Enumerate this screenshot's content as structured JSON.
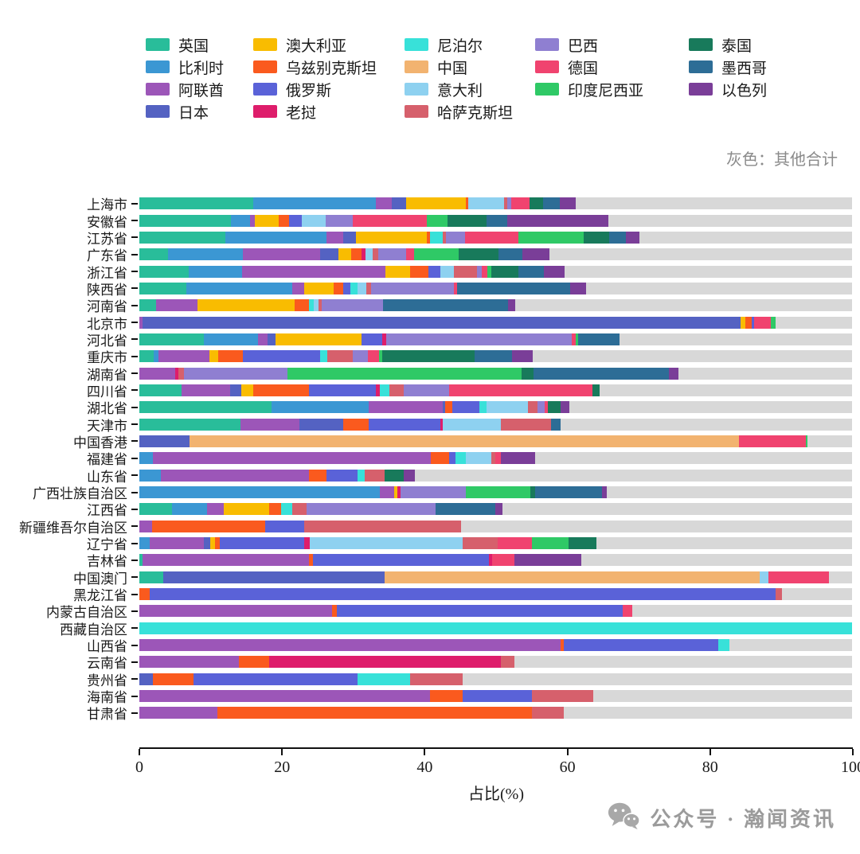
{
  "note": "灰色：其他合计",
  "footer": {
    "text": "公众号 · 瀚闻资讯"
  },
  "colors": {
    "英国": "#29BD9A",
    "比利时": "#3B97D3",
    "阿联酋": "#9C56B8",
    "日本": "#5462C2",
    "澳大利亚": "#F9BC01",
    "乌兹别克斯坦": "#FA5A1E",
    "俄罗斯": "#5A62D8",
    "老挝": "#DE1D6B",
    "尼泊尔": "#38E1D9",
    "中国": "#F2B370",
    "意大利": "#8ED1F0",
    "哈萨克斯坦": "#D6606C",
    "巴西": "#8F7FD1",
    "德国": "#F0436F",
    "印度尼西亚": "#2FC966",
    "泰国": "#187A5B",
    "墨西哥": "#2D6D96",
    "以色列": "#7A3E98",
    "其他": "#D8D8D8"
  },
  "legend": {
    "columns": [
      [
        "英国",
        "比利时",
        "阿联酋",
        "日本"
      ],
      [
        "澳大利亚",
        "乌兹别克斯坦",
        "俄罗斯",
        "老挝"
      ],
      [
        "尼泊尔",
        "中国",
        "意大利",
        "哈萨克斯坦"
      ],
      [
        "巴西",
        "德国",
        "印度尼西亚"
      ],
      [
        "泰国",
        "墨西哥",
        "以色列"
      ]
    ]
  },
  "chart_data": {
    "type": "stacked-bar-horizontal",
    "xlabel": "占比(%)",
    "xlim": [
      0,
      100
    ],
    "xticks": [
      0,
      20,
      40,
      60,
      80,
      100
    ],
    "other_label": "其他合计",
    "rows": [
      {
        "province": "上海市",
        "segments": [
          [
            "英国",
            16
          ],
          [
            "比利时",
            17.2
          ],
          [
            "阿联酋",
            2.2
          ],
          [
            "日本",
            2
          ],
          [
            "澳大利亚",
            8.4
          ],
          [
            "乌兹别克斯坦",
            0.4
          ],
          [
            "意大利",
            5
          ],
          [
            "哈萨克斯坦",
            0.4
          ],
          [
            "巴西",
            0.6
          ],
          [
            "德国",
            2.6
          ],
          [
            "泰国",
            1.8
          ],
          [
            "墨西哥",
            2.4
          ],
          [
            "以色列",
            2.2
          ]
        ]
      },
      {
        "province": "安徽省",
        "segments": [
          [
            "英国",
            12.8
          ],
          [
            "比利时",
            2.7
          ],
          [
            "阿联酋",
            0.7
          ],
          [
            "澳大利亚",
            3.4
          ],
          [
            "乌兹别克斯坦",
            1.4
          ],
          [
            "俄罗斯",
            1.8
          ],
          [
            "意大利",
            3.4
          ],
          [
            "巴西",
            3.7
          ],
          [
            "德国",
            10.4
          ],
          [
            "印度尼西亚",
            2.9
          ],
          [
            "泰国",
            5.5
          ],
          [
            "墨西哥",
            2.9
          ],
          [
            "以色列",
            14.2
          ]
        ]
      },
      {
        "province": "江苏省",
        "segments": [
          [
            "英国",
            12.1
          ],
          [
            "比利时",
            14.2
          ],
          [
            "阿联酋",
            2.3
          ],
          [
            "日本",
            1.8
          ],
          [
            "澳大利亚",
            9.9
          ],
          [
            "乌兹别克斯坦",
            0.5
          ],
          [
            "尼泊尔",
            1.8
          ],
          [
            "哈萨克斯坦",
            0.4
          ],
          [
            "巴西",
            2.7
          ],
          [
            "德国",
            7.5
          ],
          [
            "印度尼西亚",
            9.1
          ],
          [
            "泰国",
            3.6
          ],
          [
            "墨西哥",
            2.4
          ],
          [
            "以色列",
            1.9
          ]
        ]
      },
      {
        "province": "广东省",
        "segments": [
          [
            "英国",
            4
          ],
          [
            "比利时",
            10.5
          ],
          [
            "阿联酋",
            10.9
          ],
          [
            "日本",
            2.5
          ],
          [
            "澳大利亚",
            1.8
          ],
          [
            "乌兹别克斯坦",
            1.5
          ],
          [
            "老挝",
            0.5
          ],
          [
            "意大利",
            1.0
          ],
          [
            "哈萨克斯坦",
            0.8
          ],
          [
            "巴西",
            3.9
          ],
          [
            "德国",
            1.2
          ],
          [
            "印度尼西亚",
            6.2
          ],
          [
            "泰国",
            5.6
          ],
          [
            "墨西哥",
            3.3
          ],
          [
            "以色列",
            3.8
          ]
        ]
      },
      {
        "province": "浙江省",
        "segments": [
          [
            "英国",
            6.9
          ],
          [
            "比利时",
            7.5
          ],
          [
            "阿联酋",
            20.1
          ],
          [
            "澳大利亚",
            3.5
          ],
          [
            "乌兹别克斯坦",
            2.6
          ],
          [
            "俄罗斯",
            1.6
          ],
          [
            "意大利",
            1.9
          ],
          [
            "哈萨克斯坦",
            3.3
          ],
          [
            "巴西",
            0.7
          ],
          [
            "德国",
            0.7
          ],
          [
            "印度尼西亚",
            0.6
          ],
          [
            "泰国",
            3.8
          ],
          [
            "墨西哥",
            3.6
          ],
          [
            "以色列",
            2.9
          ]
        ]
      },
      {
        "province": "陕西省",
        "segments": [
          [
            "英国",
            6.6
          ],
          [
            "比利时",
            14.9
          ],
          [
            "阿联酋",
            1.6
          ],
          [
            "澳大利亚",
            4.2
          ],
          [
            "乌兹别克斯坦",
            1.3
          ],
          [
            "俄罗斯",
            1.0
          ],
          [
            "尼泊尔",
            1.0
          ],
          [
            "意大利",
            1.2
          ],
          [
            "哈萨克斯坦",
            0.7
          ],
          [
            "巴西",
            11.7
          ],
          [
            "德国",
            0.4
          ],
          [
            "墨西哥",
            15.9
          ],
          [
            "以色列",
            2.2
          ]
        ]
      },
      {
        "province": "河南省",
        "segments": [
          [
            "英国",
            2.3
          ],
          [
            "阿联酋",
            5.9
          ],
          [
            "澳大利亚",
            13.6
          ],
          [
            "乌兹别克斯坦",
            2.0
          ],
          [
            "尼泊尔",
            0.7
          ],
          [
            "意大利",
            0.7
          ],
          [
            "哈萨克斯坦",
            0.4
          ],
          [
            "巴西",
            8.6
          ],
          [
            "墨西哥",
            17.5
          ],
          [
            "以色列",
            1.0
          ]
        ]
      },
      {
        "province": "北京市",
        "segments": [
          [
            "阿联酋",
            0.5
          ],
          [
            "日本",
            83.9
          ],
          [
            "澳大利亚",
            0.6
          ],
          [
            "乌兹别克斯坦",
            0.9
          ],
          [
            "俄罗斯",
            0.4
          ],
          [
            "德国",
            2.3
          ],
          [
            "印度尼西亚",
            0.7
          ]
        ]
      },
      {
        "province": "河北省",
        "segments": [
          [
            "英国",
            9.1
          ],
          [
            "比利时",
            7.5
          ],
          [
            "阿联酋",
            1.4
          ],
          [
            "日本",
            1.1
          ],
          [
            "澳大利亚",
            12.1
          ],
          [
            "俄罗斯",
            2.9
          ],
          [
            "老挝",
            0.5
          ],
          [
            "巴西",
            26.1
          ],
          [
            "德国",
            0.5
          ],
          [
            "印度尼西亚",
            0.4
          ],
          [
            "墨西哥",
            5.8
          ]
        ]
      },
      {
        "province": "重庆市",
        "segments": [
          [
            "英国",
            2.0
          ],
          [
            "比利时",
            0.7
          ],
          [
            "阿联酋",
            7.1
          ],
          [
            "澳大利亚",
            1.3
          ],
          [
            "乌兹别克斯坦",
            3.4
          ],
          [
            "俄罗斯",
            10.9
          ],
          [
            "尼泊尔",
            1.0
          ],
          [
            "哈萨克斯坦",
            3.6
          ],
          [
            "巴西",
            2.1
          ],
          [
            "德国",
            1.5
          ],
          [
            "印度尼西亚",
            0.5
          ],
          [
            "泰国",
            13.0
          ],
          [
            "墨西哥",
            5.2
          ],
          [
            "以色列",
            2.9
          ]
        ]
      },
      {
        "province": "湖南省",
        "segments": [
          [
            "阿联酋",
            5.0
          ],
          [
            "老挝",
            0.5
          ],
          [
            "哈萨克斯坦",
            0.8
          ],
          [
            "巴西",
            14.5
          ],
          [
            "印度尼西亚",
            32.8
          ],
          [
            "泰国",
            1.7
          ],
          [
            "墨西哥",
            19.0
          ],
          [
            "以色列",
            1.3
          ]
        ]
      },
      {
        "province": "四川省",
        "segments": [
          [
            "英国",
            5.9
          ],
          [
            "阿联酋",
            6.8
          ],
          [
            "日本",
            1.6
          ],
          [
            "澳大利亚",
            1.7
          ],
          [
            "乌兹别克斯坦",
            7.8
          ],
          [
            "俄罗斯",
            9.4
          ],
          [
            "老挝",
            0.6
          ],
          [
            "尼泊尔",
            1.3
          ],
          [
            "哈萨克斯坦",
            2.0
          ],
          [
            "巴西",
            6.4
          ],
          [
            "德国",
            20.1
          ],
          [
            "泰国",
            1.0
          ]
        ]
      },
      {
        "province": "湖北省",
        "segments": [
          [
            "英国",
            18.6
          ],
          [
            "比利时",
            13.6
          ],
          [
            "阿联酋",
            10.4
          ],
          [
            "日本",
            0.3
          ],
          [
            "乌兹别克斯坦",
            1.0
          ],
          [
            "俄罗斯",
            3.8
          ],
          [
            "尼泊尔",
            1.0
          ],
          [
            "意大利",
            5.8
          ],
          [
            "哈萨克斯坦",
            1.4
          ],
          [
            "巴西",
            1.0
          ],
          [
            "德国",
            0.4
          ],
          [
            "泰国",
            1.8
          ],
          [
            "以色列",
            1.3
          ]
        ]
      },
      {
        "province": "天津市",
        "segments": [
          [
            "英国",
            14.2
          ],
          [
            "阿联酋",
            8.3
          ],
          [
            "日本",
            6.1
          ],
          [
            "乌兹别克斯坦",
            3.6
          ],
          [
            "俄罗斯",
            10.0
          ],
          [
            "老挝",
            0.4
          ],
          [
            "意大利",
            8.1
          ],
          [
            "哈萨克斯坦",
            7.1
          ],
          [
            "墨西哥",
            1.3
          ]
        ]
      },
      {
        "province": "中国香港",
        "segments": [
          [
            "日本",
            7.0
          ],
          [
            "中国",
            77.1
          ],
          [
            "德国",
            9.4
          ],
          [
            "印度尼西亚",
            0.3
          ]
        ]
      },
      {
        "province": "福建省",
        "segments": [
          [
            "比利时",
            1.9
          ],
          [
            "阿联酋",
            39.0
          ],
          [
            "乌兹别克斯坦",
            2.6
          ],
          [
            "俄罗斯",
            0.9
          ],
          [
            "尼泊尔",
            1.4
          ],
          [
            "意大利",
            3.6
          ],
          [
            "哈萨克斯坦",
            0.6
          ],
          [
            "德国",
            0.7
          ],
          [
            "以色列",
            4.8
          ]
        ]
      },
      {
        "province": "山东省",
        "segments": [
          [
            "比利时",
            3.0
          ],
          [
            "阿联酋",
            20.8
          ],
          [
            "乌兹别克斯坦",
            2.5
          ],
          [
            "俄罗斯",
            4.3
          ],
          [
            "尼泊尔",
            1.0
          ],
          [
            "哈萨克斯坦",
            2.8
          ],
          [
            "泰国",
            2.7
          ],
          [
            "以色列",
            1.6
          ]
        ]
      },
      {
        "province": "广西壮族自治区",
        "segments": [
          [
            "比利时",
            33.7
          ],
          [
            "阿联酋",
            2.1
          ],
          [
            "澳大利亚",
            0.4
          ],
          [
            "老挝",
            0.4
          ],
          [
            "巴西",
            9.2
          ],
          [
            "印度尼西亚",
            9.1
          ],
          [
            "泰国",
            0.6
          ],
          [
            "墨西哥",
            9.4
          ],
          [
            "以色列",
            0.7
          ]
        ]
      },
      {
        "province": "江西省",
        "segments": [
          [
            "英国",
            4.6
          ],
          [
            "比利时",
            4.9
          ],
          [
            "阿联酋",
            2.3
          ],
          [
            "澳大利亚",
            6.4
          ],
          [
            "乌兹别克斯坦",
            1.7
          ],
          [
            "尼泊尔",
            1.6
          ],
          [
            "哈萨克斯坦",
            2.0
          ],
          [
            "巴西",
            18.1
          ],
          [
            "墨西哥",
            8.4
          ],
          [
            "以色列",
            1.0
          ]
        ]
      },
      {
        "province": "新疆维吾尔自治区",
        "segments": [
          [
            "阿联酋",
            1.8
          ],
          [
            "乌兹别克斯坦",
            15.8
          ],
          [
            "俄罗斯",
            5.5
          ],
          [
            "哈萨克斯坦",
            22.0
          ]
        ]
      },
      {
        "province": "辽宁省",
        "segments": [
          [
            "比利时",
            1.4
          ],
          [
            "阿联酋",
            7.7
          ],
          [
            "日本",
            0.9
          ],
          [
            "澳大利亚",
            0.6
          ],
          [
            "乌兹别克斯坦",
            0.7
          ],
          [
            "俄罗斯",
            11.8
          ],
          [
            "老挝",
            0.8
          ],
          [
            "意大利",
            21.5
          ],
          [
            "哈萨克斯坦",
            4.9
          ],
          [
            "德国",
            4.8
          ],
          [
            "印度尼西亚",
            5.1
          ],
          [
            "泰国",
            3.9
          ]
        ]
      },
      {
        "province": "吉林省",
        "segments": [
          [
            "英国",
            0.5
          ],
          [
            "阿联酋",
            23.3
          ],
          [
            "乌兹别克斯坦",
            0.6
          ],
          [
            "俄罗斯",
            24.6
          ],
          [
            "老挝",
            0.5
          ],
          [
            "德国",
            3.1
          ],
          [
            "以色列",
            9.4
          ]
        ]
      },
      {
        "province": "中国澳门",
        "segments": [
          [
            "英国",
            3.4
          ],
          [
            "日本",
            31.0
          ],
          [
            "中国",
            52.6
          ],
          [
            "意大利",
            1.3
          ],
          [
            "德国",
            8.5
          ]
        ]
      },
      {
        "province": "黑龙江省",
        "segments": [
          [
            "乌兹别克斯坦",
            1.4
          ],
          [
            "俄罗斯",
            87.9
          ],
          [
            "哈萨克斯坦",
            0.9
          ]
        ]
      },
      {
        "province": "内蒙古自治区",
        "segments": [
          [
            "阿联酋",
            27.0
          ],
          [
            "乌兹别克斯坦",
            0.7
          ],
          [
            "俄罗斯",
            40.1
          ],
          [
            "德国",
            1.4
          ]
        ]
      },
      {
        "province": "西藏自治区",
        "segments": [
          [
            "尼泊尔",
            100
          ]
        ]
      },
      {
        "province": "山西省",
        "segments": [
          [
            "阿联酋",
            59.1
          ],
          [
            "乌兹别克斯坦",
            0.4
          ],
          [
            "俄罗斯",
            21.7
          ],
          [
            "尼泊尔",
            1.6
          ]
        ]
      },
      {
        "province": "云南省",
        "segments": [
          [
            "阿联酋",
            14.0
          ],
          [
            "乌兹别克斯坦",
            4.2
          ],
          [
            "老挝",
            32.5
          ],
          [
            "哈萨克斯坦",
            1.9
          ]
        ]
      },
      {
        "province": "贵州省",
        "segments": [
          [
            "日本",
            1.9
          ],
          [
            "乌兹别克斯坦",
            5.7
          ],
          [
            "俄罗斯",
            23.0
          ],
          [
            "尼泊尔",
            7.4
          ],
          [
            "哈萨克斯坦",
            7.4
          ]
        ]
      },
      {
        "province": "海南省",
        "segments": [
          [
            "阿联酋",
            40.8
          ],
          [
            "乌兹别克斯坦",
            4.6
          ],
          [
            "俄罗斯",
            9.7
          ],
          [
            "哈萨克斯坦",
            8.6
          ]
        ]
      },
      {
        "province": "甘肃省",
        "segments": [
          [
            "阿联酋",
            11.0
          ],
          [
            "乌兹别克斯坦",
            44.1
          ],
          [
            "哈萨克斯坦",
            4.5
          ]
        ]
      }
    ]
  }
}
